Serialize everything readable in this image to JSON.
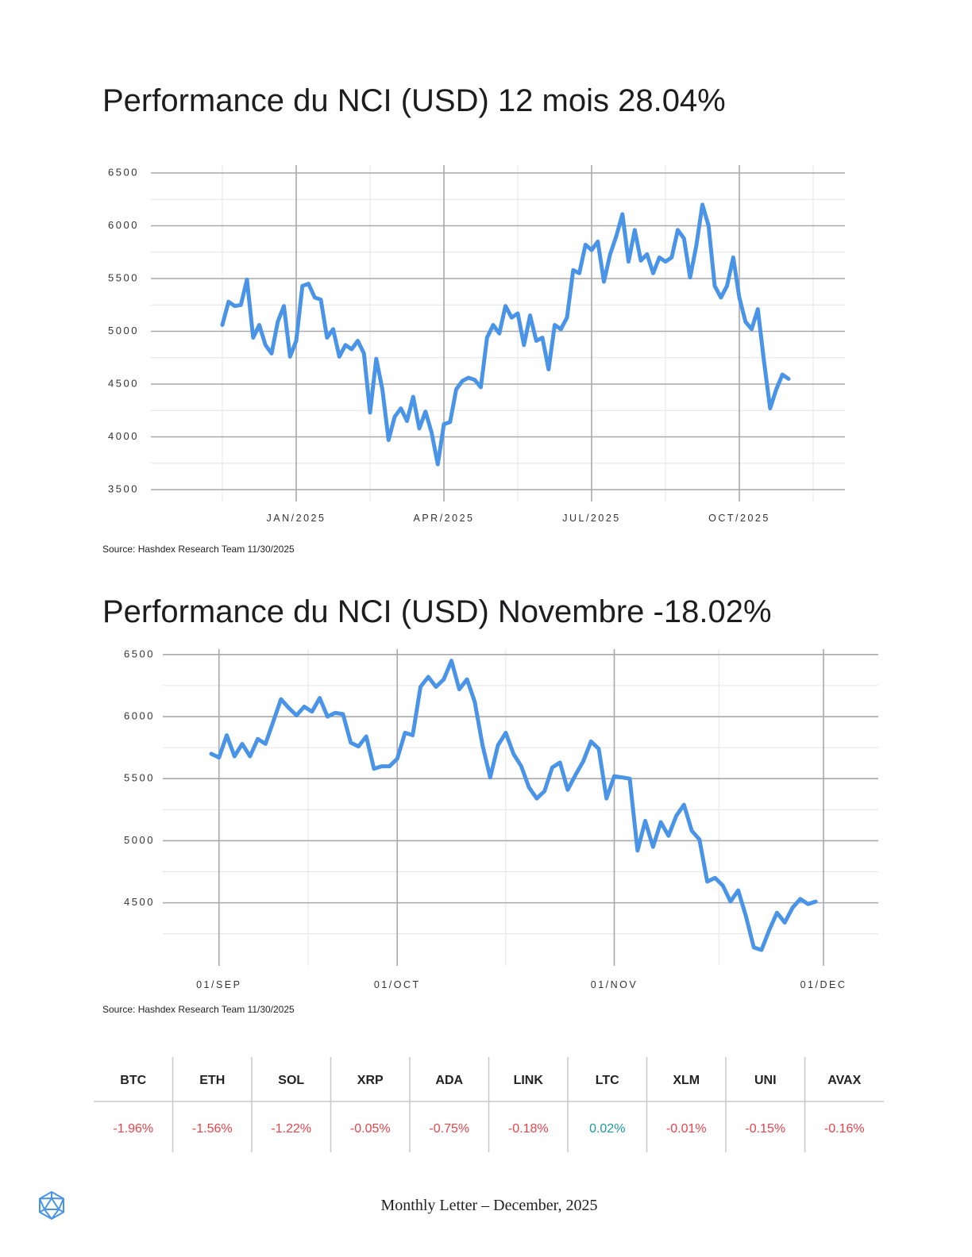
{
  "chart_data": [
    {
      "type": "line",
      "title": "Performance du NCI (USD) 12 mois 28.04%",
      "source": "Source: Hashdex Research Team 11/30/2025",
      "categories": [
        null,
        null,
        null,
        null,
        null,
        null,
        null,
        null,
        null,
        null,
        null,
        null,
        "JAN/2025",
        null,
        null,
        null,
        null,
        null,
        null,
        null,
        null,
        null,
        null,
        null,
        null,
        null,
        null,
        null,
        null,
        null,
        null,
        null,
        null,
        null,
        null,
        null,
        "APR/2025",
        null,
        null,
        null,
        null,
        null,
        null,
        null,
        null,
        null,
        null,
        null,
        null,
        null,
        null,
        null,
        null,
        null,
        null,
        null,
        null,
        null,
        null,
        null,
        "JUL/2025",
        null,
        null,
        null,
        null,
        null,
        null,
        null,
        null,
        null,
        null,
        null,
        null,
        null,
        null,
        null,
        null,
        null,
        null,
        null,
        null,
        null,
        null,
        null,
        "OCT/2025",
        null,
        null,
        null,
        null,
        null,
        null,
        null,
        null
      ],
      "color": "#4a94e8",
      "values": [
        5060,
        5280,
        5240,
        5250,
        5490,
        4940,
        5060,
        4870,
        4790,
        5090,
        5240,
        4760,
        4910,
        5430,
        5450,
        5320,
        5300,
        4940,
        5020,
        4760,
        4870,
        4830,
        4910,
        4790,
        4230,
        4740,
        4450,
        3970,
        4190,
        4270,
        4150,
        4380,
        4080,
        4240,
        4040,
        3740,
        4120,
        4140,
        4450,
        4530,
        4560,
        4540,
        4470,
        4940,
        5060,
        4980,
        5240,
        5130,
        5170,
        4870,
        5150,
        4910,
        4940,
        4640,
        5060,
        5020,
        5130,
        5580,
        5550,
        5820,
        5770,
        5850,
        5470,
        5730,
        5900,
        6110,
        5660,
        5960,
        5670,
        5730,
        5550,
        5700,
        5660,
        5700,
        5960,
        5880,
        5510,
        5810,
        6200,
        6000,
        5430,
        5320,
        5430,
        5700,
        5320,
        5090,
        5020,
        5210,
        4720,
        4270,
        4450,
        4590,
        4550
      ],
      "ylim": [
        3500,
        6500
      ],
      "yticks": [
        3500,
        4000,
        4500,
        5000,
        5500,
        6000,
        6500
      ],
      "grid": true
    },
    {
      "type": "line",
      "title": "Performance du NCI (USD) Novembre -18.02%",
      "source": "Source: Hashdex Research Team 11/30/2025",
      "categories": [
        null,
        "01/SEP",
        null,
        null,
        null,
        null,
        null,
        null,
        null,
        null,
        null,
        null,
        null,
        null,
        null,
        null,
        null,
        null,
        null,
        null,
        null,
        null,
        null,
        null,
        "01/OCT",
        null,
        null,
        null,
        null,
        null,
        null,
        null,
        null,
        null,
        null,
        null,
        null,
        null,
        null,
        null,
        null,
        null,
        null,
        null,
        null,
        null,
        null,
        null,
        null,
        null,
        null,
        null,
        "01/NOV",
        null,
        null,
        null,
        null,
        null,
        null,
        null,
        null,
        null,
        null,
        null,
        null,
        null,
        null,
        null,
        null,
        null,
        null,
        null,
        null,
        null,
        null,
        null,
        null,
        null,
        null,
        "01/DEC"
      ],
      "color": "#4a94e8",
      "values": [
        5700,
        5670,
        5850,
        5680,
        5780,
        5680,
        5820,
        5780,
        5960,
        6140,
        6070,
        6010,
        6080,
        6040,
        6150,
        6000,
        6030,
        6020,
        5790,
        5760,
        5840,
        5580,
        5600,
        5600,
        5660,
        5870,
        5850,
        6240,
        6320,
        6240,
        6300,
        6450,
        6220,
        6300,
        6120,
        5770,
        5510,
        5770,
        5870,
        5700,
        5600,
        5430,
        5340,
        5400,
        5590,
        5630,
        5410,
        5530,
        5640,
        5800,
        5740,
        5340,
        5520,
        5510,
        5500,
        4920,
        5160,
        4950,
        5150,
        5040,
        5200,
        5290,
        5080,
        5010,
        4670,
        4700,
        4640,
        4510,
        4600,
        4390,
        4140,
        4120,
        4280,
        4420,
        4340,
        4460,
        4530,
        4490,
        4510,
        null
      ],
      "ylim": [
        4050,
        6550
      ],
      "yticks": [
        4500,
        5000,
        5500,
        6000,
        6500
      ],
      "grid": true
    }
  ],
  "table": {
    "header": [
      "BTC",
      "ETH",
      "SOL",
      "XRP",
      "ADA",
      "LINK",
      "LTC",
      "XLM",
      "UNI",
      "AVAX"
    ],
    "rows": [
      [
        "-1.96%",
        "-1.56%",
        "-1.22%",
        "-0.05%",
        "-0.75%",
        "-0.18%",
        "0.02%",
        "-0.01%",
        "-0.15%",
        "-0.16%"
      ]
    ]
  },
  "footer": "Monthly Letter – December, 2025"
}
